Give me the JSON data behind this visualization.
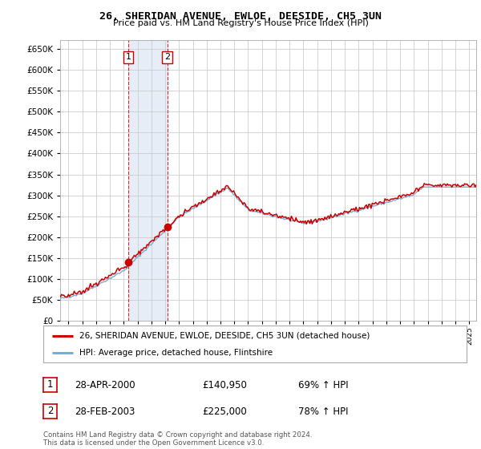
{
  "title": "26, SHERIDAN AVENUE, EWLOE, DEESIDE, CH5 3UN",
  "subtitle": "Price paid vs. HM Land Registry's House Price Index (HPI)",
  "legend_house": "26, SHERIDAN AVENUE, EWLOE, DEESIDE, CH5 3UN (detached house)",
  "legend_hpi": "HPI: Average price, detached house, Flintshire",
  "footer": "Contains HM Land Registry data © Crown copyright and database right 2024.\nThis data is licensed under the Open Government Licence v3.0.",
  "sale1_date": "28-APR-2000",
  "sale1_price": "£140,950",
  "sale1_hpi": "69% ↑ HPI",
  "sale2_date": "28-FEB-2003",
  "sale2_price": "£225,000",
  "sale2_hpi": "78% ↑ HPI",
  "house_color": "#cc0000",
  "hpi_color": "#7aadd4",
  "sale1_x": 2000.32,
  "sale1_y": 140950,
  "sale2_x": 2003.15,
  "sale2_y": 225000,
  "shade_x1": 2000.32,
  "shade_x2": 2003.15,
  "ylim": [
    0,
    670000
  ],
  "yticks": [
    0,
    50000,
    100000,
    150000,
    200000,
    250000,
    300000,
    350000,
    400000,
    450000,
    500000,
    550000,
    600000,
    650000
  ],
  "xlim_left": 1995.4,
  "xlim_right": 2025.5,
  "background_color": "#ffffff",
  "grid_color": "#cccccc",
  "shade_color": "#c8d8ee",
  "shade_alpha": 0.45
}
